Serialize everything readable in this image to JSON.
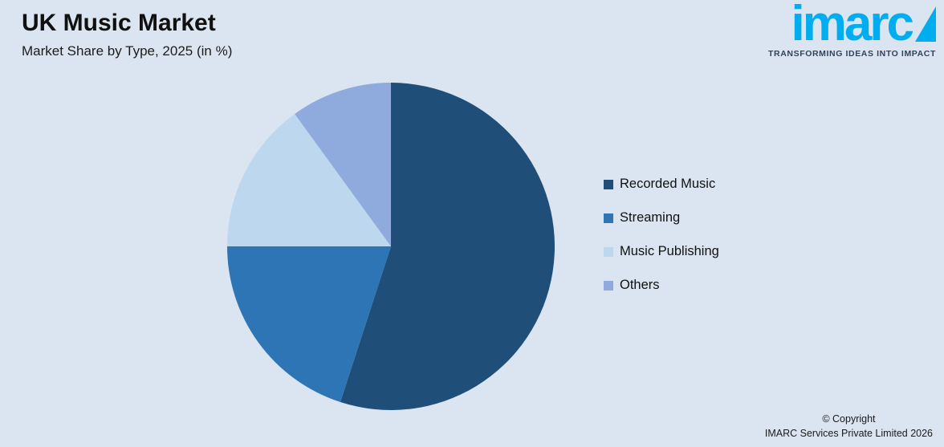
{
  "header": {
    "title": "UK Music Market",
    "subtitle": "Market Share by Type, 2025 (in %)"
  },
  "logo": {
    "text": "imarc",
    "tagline": "TRANSFORMING IDEAS INTO IMPACT",
    "brand_color": "#00aeef"
  },
  "chart_data": {
    "type": "pie",
    "title": "UK Music Market",
    "subtitle": "Market Share by Type, 2025 (in %)",
    "categories": [
      "Recorded Music",
      "Streaming",
      "Music Publishing",
      "Others"
    ],
    "values": [
      55,
      20,
      15,
      10
    ],
    "colors": [
      "#1f4e79",
      "#2e75b6",
      "#bdd7ee",
      "#8faadc"
    ],
    "start_angle_deg": 0,
    "direction": "clockwise",
    "legend_position": "right",
    "data_labels": false
  },
  "footer": {
    "line1": "© Copyright",
    "line2": "IMARC Services Private Limited 2026"
  }
}
